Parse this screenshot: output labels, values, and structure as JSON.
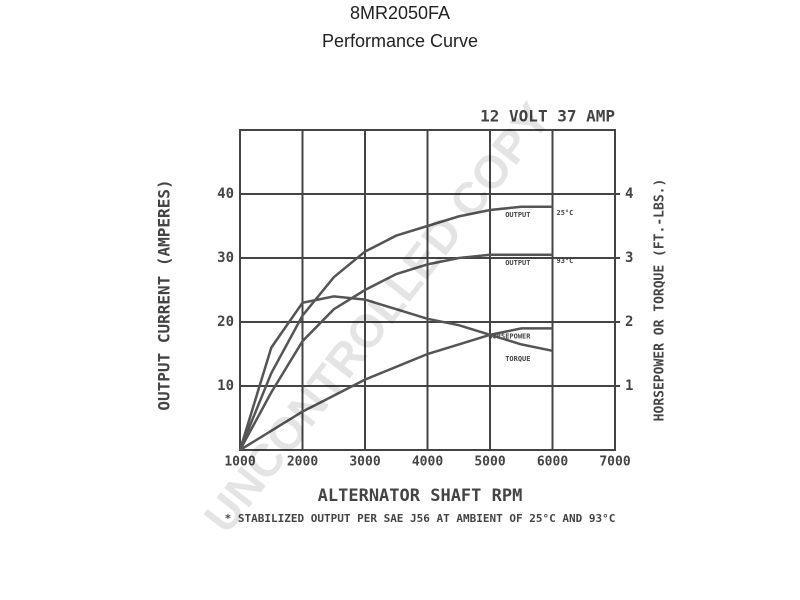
{
  "chart_data": {
    "type": "line",
    "title": "8MR2050FA",
    "subtitle": "Performance Curve",
    "rating": "12 VOLT 37 AMP",
    "x_label": "ALTERNATOR SHAFT RPM",
    "y_label": "OUTPUT CURRENT (AMPERES)",
    "y2_label": "HORSEPOWER OR TORQUE (FT.-LBS.)",
    "footnote": "* STABILIZED OUTPUT PER SAE J56 AT AMBIENT OF 25°C AND 93°C",
    "watermark": "UNCONTROLLED COPY",
    "annotations": [
      "25°C",
      "93°C"
    ],
    "x": [
      1000,
      1500,
      2000,
      2500,
      3000,
      3500,
      4000,
      4500,
      5000,
      5500,
      6000
    ],
    "series": [
      {
        "name": "OUTPUT",
        "color": "#555555",
        "values": [
          0,
          12,
          21,
          27,
          31,
          33.5,
          35,
          36.5,
          37.5,
          38,
          38
        ]
      },
      {
        "name": "OUTPUT",
        "color": "#555555",
        "values": [
          0,
          9,
          17,
          22,
          25,
          27.5,
          29,
          30,
          30.5,
          30.5,
          30.5
        ]
      },
      {
        "name": "HORSEPOWER",
        "color": "#555555",
        "axis": "y2",
        "values": [
          0,
          0.3,
          0.6,
          0.85,
          1.1,
          1.3,
          1.5,
          1.65,
          1.8,
          1.9,
          1.9
        ]
      },
      {
        "name": "TORQUE",
        "color": "#555555",
        "axis": "y2",
        "values": [
          0,
          1.6,
          2.3,
          2.4,
          2.35,
          2.2,
          2.05,
          1.95,
          1.8,
          1.65,
          1.55
        ]
      }
    ],
    "xlim": [
      1000,
      7000
    ],
    "xticks": [
      1000,
      2000,
      3000,
      4000,
      5000,
      6000,
      7000
    ],
    "ylim": [
      0,
      50
    ],
    "yticks": [
      10,
      20,
      30,
      40
    ],
    "y2lim": [
      0,
      5
    ],
    "y2ticks": [
      1,
      2,
      3,
      4
    ],
    "grid": true
  }
}
